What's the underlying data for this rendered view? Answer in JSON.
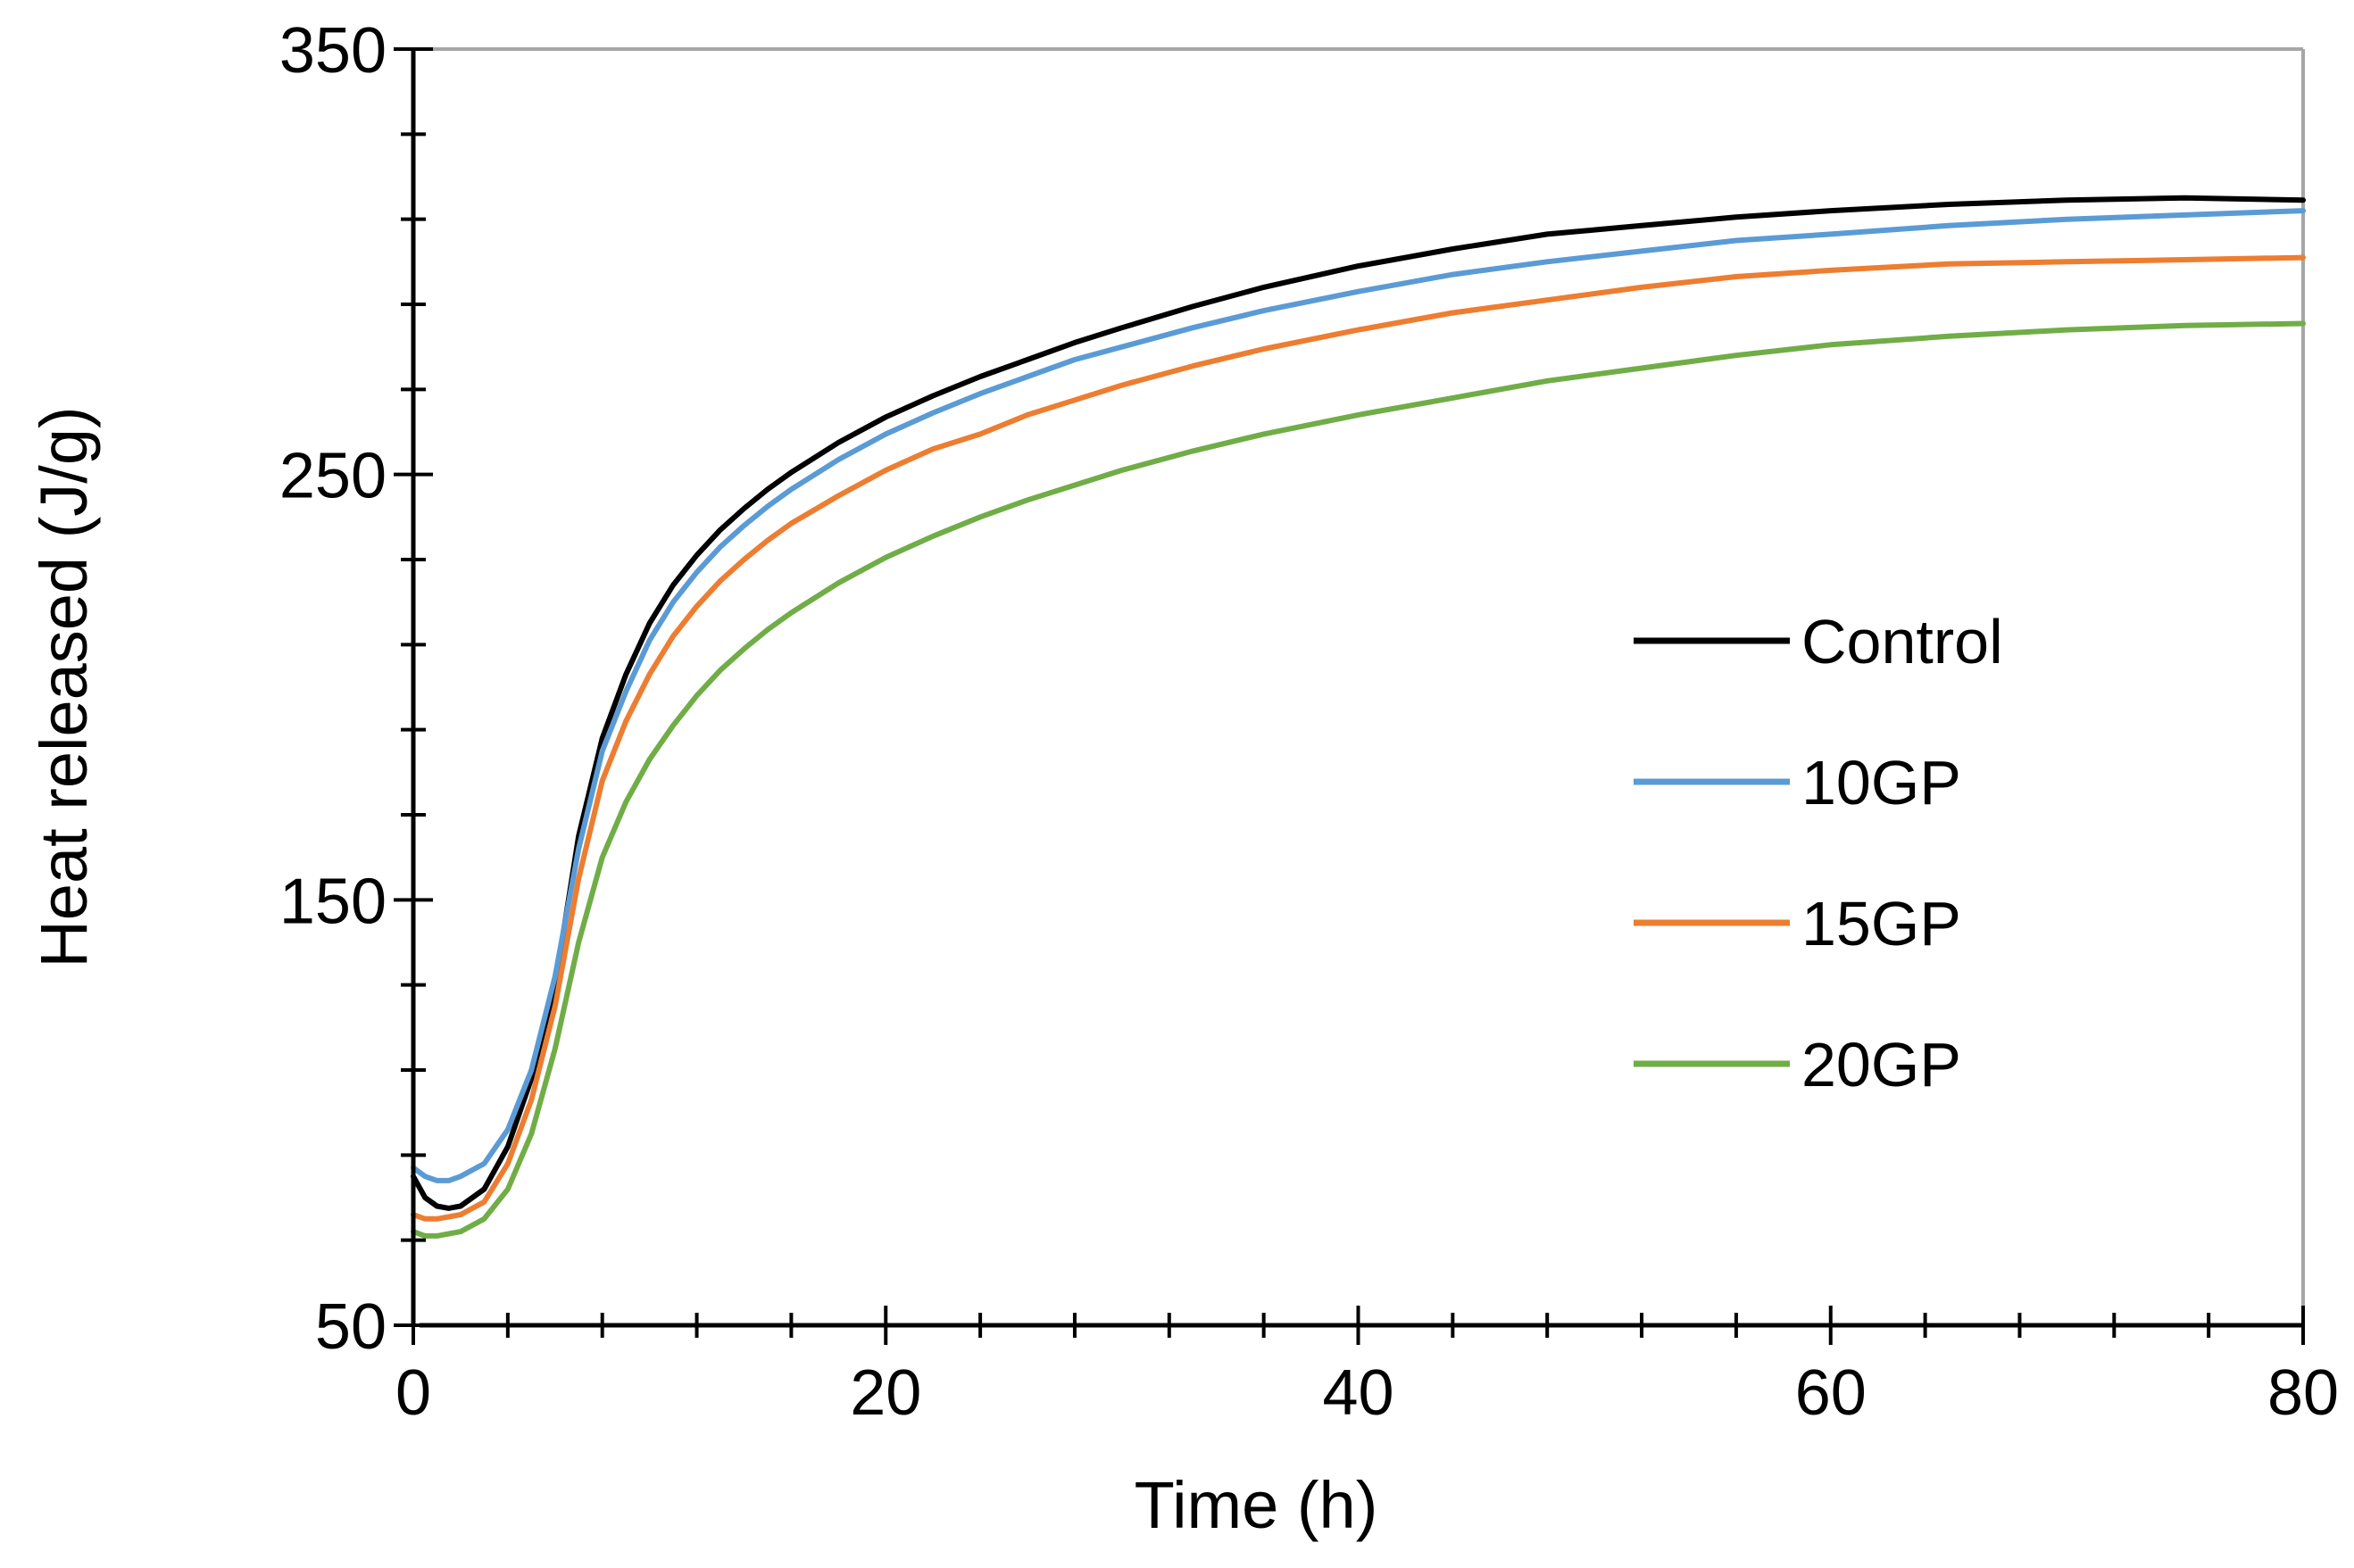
{
  "chart_data": {
    "type": "line",
    "title": "",
    "xlabel": "Time (h)",
    "ylabel": "Heat released (J/g)",
    "xlim": [
      0,
      80
    ],
    "ylim": [
      50,
      350
    ],
    "xticks": [
      0,
      20,
      40,
      60,
      80
    ],
    "yticks": [
      50,
      150,
      250,
      350
    ],
    "x_minor_step": 4,
    "y_minor_step": 20,
    "grid": false,
    "legend_position": "right-middle",
    "series": [
      {
        "name": "Control",
        "color": "#000000",
        "points": [
          [
            0,
            85
          ],
          [
            0.5,
            80
          ],
          [
            1,
            78
          ],
          [
            1.5,
            77.5
          ],
          [
            2,
            78
          ],
          [
            3,
            82
          ],
          [
            4,
            92
          ],
          [
            5,
            108
          ],
          [
            6,
            130
          ],
          [
            7,
            165
          ],
          [
            8,
            188
          ],
          [
            9,
            203
          ],
          [
            10,
            215
          ],
          [
            11,
            224
          ],
          [
            12,
            231
          ],
          [
            13,
            237
          ],
          [
            14,
            242
          ],
          [
            15,
            246.5
          ],
          [
            16,
            250.5
          ],
          [
            18,
            257.5
          ],
          [
            20,
            263.5
          ],
          [
            22,
            268.5
          ],
          [
            24,
            273
          ],
          [
            26,
            277
          ],
          [
            28,
            281
          ],
          [
            30,
            284.5
          ],
          [
            33,
            289.5
          ],
          [
            36,
            294
          ],
          [
            40,
            299
          ],
          [
            44,
            303
          ],
          [
            48,
            306.5
          ],
          [
            52,
            308.5
          ],
          [
            56,
            310.5
          ],
          [
            60,
            312
          ],
          [
            65,
            313.5
          ],
          [
            70,
            314.5
          ],
          [
            75,
            315
          ],
          [
            80,
            314.5
          ]
        ]
      },
      {
        "name": "10GP",
        "color": "#5b9bd5",
        "points": [
          [
            0,
            87
          ],
          [
            0.5,
            85
          ],
          [
            1,
            84
          ],
          [
            1.5,
            84
          ],
          [
            2,
            85
          ],
          [
            3,
            88
          ],
          [
            4,
            96
          ],
          [
            5,
            110
          ],
          [
            6,
            132
          ],
          [
            7,
            162
          ],
          [
            8,
            185
          ],
          [
            9,
            199
          ],
          [
            10,
            211
          ],
          [
            11,
            220
          ],
          [
            12,
            227
          ],
          [
            13,
            233
          ],
          [
            14,
            238
          ],
          [
            15,
            242.5
          ],
          [
            16,
            246.5
          ],
          [
            18,
            253.5
          ],
          [
            20,
            259.5
          ],
          [
            22,
            264.5
          ],
          [
            24,
            269
          ],
          [
            26,
            273
          ],
          [
            28,
            277
          ],
          [
            30,
            280
          ],
          [
            33,
            284.5
          ],
          [
            36,
            288.5
          ],
          [
            40,
            293
          ],
          [
            44,
            297
          ],
          [
            48,
            300
          ],
          [
            52,
            302.5
          ],
          [
            56,
            305
          ],
          [
            60,
            306.5
          ],
          [
            65,
            308.5
          ],
          [
            70,
            310
          ],
          [
            75,
            311
          ],
          [
            80,
            312
          ]
        ]
      },
      {
        "name": "15GP",
        "color": "#ed7d31",
        "points": [
          [
            0,
            76
          ],
          [
            0.5,
            75
          ],
          [
            1,
            75
          ],
          [
            1.5,
            75.5
          ],
          [
            2,
            76
          ],
          [
            3,
            79
          ],
          [
            4,
            88
          ],
          [
            5,
            103
          ],
          [
            6,
            125
          ],
          [
            7,
            155
          ],
          [
            8,
            178
          ],
          [
            9,
            192
          ],
          [
            10,
            203
          ],
          [
            11,
            212
          ],
          [
            12,
            219
          ],
          [
            13,
            225
          ],
          [
            14,
            230
          ],
          [
            15,
            234.5
          ],
          [
            16,
            238.5
          ],
          [
            18,
            245
          ],
          [
            20,
            251
          ],
          [
            22,
            256
          ],
          [
            24,
            259.5
          ],
          [
            26,
            264
          ],
          [
            28,
            267.5
          ],
          [
            30,
            271
          ],
          [
            33,
            275.5
          ],
          [
            36,
            279.5
          ],
          [
            40,
            284
          ],
          [
            44,
            288
          ],
          [
            48,
            291
          ],
          [
            52,
            294
          ],
          [
            56,
            296.5
          ],
          [
            60,
            298
          ],
          [
            65,
            299.5
          ],
          [
            70,
            300
          ],
          [
            75,
            300.5
          ],
          [
            80,
            301
          ]
        ]
      },
      {
        "name": "20GP",
        "color": "#70ad47",
        "points": [
          [
            0,
            72
          ],
          [
            0.5,
            71
          ],
          [
            1,
            71
          ],
          [
            1.5,
            71.5
          ],
          [
            2,
            72
          ],
          [
            3,
            75
          ],
          [
            4,
            82
          ],
          [
            5,
            95
          ],
          [
            6,
            115
          ],
          [
            7,
            140
          ],
          [
            8,
            160
          ],
          [
            9,
            173
          ],
          [
            10,
            183
          ],
          [
            11,
            191
          ],
          [
            12,
            198
          ],
          [
            13,
            204
          ],
          [
            14,
            209
          ],
          [
            15,
            213.5
          ],
          [
            16,
            217.5
          ],
          [
            18,
            224.5
          ],
          [
            20,
            230.5
          ],
          [
            22,
            235.5
          ],
          [
            24,
            240
          ],
          [
            26,
            244
          ],
          [
            28,
            247.5
          ],
          [
            30,
            251
          ],
          [
            33,
            255.5
          ],
          [
            36,
            259.5
          ],
          [
            40,
            264
          ],
          [
            44,
            268
          ],
          [
            48,
            272
          ],
          [
            52,
            275
          ],
          [
            56,
            278
          ],
          [
            60,
            280.5
          ],
          [
            65,
            282.5
          ],
          [
            70,
            284
          ],
          [
            75,
            285
          ],
          [
            80,
            285.5
          ]
        ]
      }
    ]
  }
}
